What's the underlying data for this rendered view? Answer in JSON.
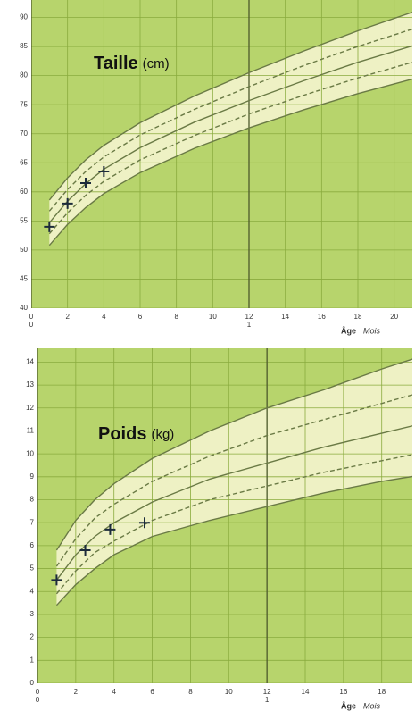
{
  "chart_data": [
    {
      "type": "growth",
      "title": "Taille",
      "unit": "(cm)",
      "x_label": "Âge",
      "x_unit": "Mois",
      "xlim": [
        0,
        21
      ],
      "ylim": [
        40,
        93
      ],
      "xticks": [
        0,
        2,
        4,
        6,
        8,
        10,
        12,
        14,
        16,
        18,
        20
      ],
      "year_ticks": [
        0,
        {
          "value": 12,
          "label": "1"
        }
      ],
      "yticks": [
        40,
        45,
        50,
        55,
        60,
        65,
        70,
        75,
        80,
        85,
        90
      ],
      "grid": true,
      "background": "#b7d46c",
      "band_color": "#eef1c4",
      "series": [
        {
          "style": "solid",
          "color": "#6a7a45",
          "x": [
            1,
            2,
            3,
            4,
            6,
            9,
            12,
            15,
            18,
            21
          ],
          "values": [
            50.8,
            54.4,
            57.3,
            59.7,
            63.3,
            67.5,
            71,
            74.1,
            76.9,
            79.4
          ]
        },
        {
          "style": "dashed",
          "color": "#6a7a45",
          "x": [
            1,
            2,
            3,
            4,
            6,
            9,
            12,
            15,
            18,
            21
          ],
          "values": [
            52.8,
            56.4,
            59.4,
            61.8,
            65.5,
            69.7,
            73.4,
            76.6,
            79.6,
            82.3
          ]
        },
        {
          "style": "solid",
          "color": "#6a7a45",
          "x": [
            1,
            2,
            3,
            4,
            6,
            9,
            12,
            15,
            18,
            21
          ],
          "values": [
            54.7,
            58.4,
            61.4,
            63.9,
            67.6,
            72,
            75.7,
            79.1,
            82.3,
            85.1
          ]
        },
        {
          "style": "dashed",
          "color": "#6a7a45",
          "x": [
            1,
            2,
            3,
            4,
            6,
            9,
            12,
            15,
            18,
            21
          ],
          "values": [
            56.7,
            60.4,
            63.5,
            66,
            69.8,
            74.2,
            78.1,
            81.7,
            85,
            88
          ]
        },
        {
          "style": "solid",
          "color": "#6a7a45",
          "x": [
            1,
            2,
            3,
            4,
            6,
            9,
            12,
            15,
            18,
            21
          ],
          "values": [
            58.6,
            62.4,
            65.5,
            68,
            71.9,
            76.5,
            80.5,
            84.2,
            87.7,
            90.9
          ]
        },
        {
          "style": "plus",
          "color": "#1c2b3b",
          "x": [
            1,
            2,
            3,
            4
          ],
          "values": [
            54,
            58,
            61.5,
            63.5
          ]
        }
      ]
    },
    {
      "type": "growth",
      "title": "Poids",
      "unit": "(kg)",
      "x_label": "Âge",
      "x_unit": "Mois",
      "xlim": [
        0,
        19.6
      ],
      "ylim": [
        0,
        14.6
      ],
      "xticks": [
        0,
        2,
        4,
        6,
        8,
        10,
        12,
        14,
        16,
        18
      ],
      "year_ticks": [
        0,
        {
          "value": 12,
          "label": "1"
        }
      ],
      "yticks": [
        0,
        1,
        2,
        3,
        4,
        5,
        6,
        7,
        8,
        9,
        10,
        11,
        12,
        13,
        14
      ],
      "grid": true,
      "background": "#b7d46c",
      "band_color": "#eef1c4",
      "series": [
        {
          "style": "solid",
          "color": "#6a7a45",
          "x": [
            1,
            2,
            3,
            4,
            6,
            9,
            12,
            15,
            18,
            21
          ],
          "values": [
            3.4,
            4.3,
            5,
            5.6,
            6.4,
            7.1,
            7.7,
            8.3,
            8.8,
            9.2
          ]
        },
        {
          "style": "dashed",
          "color": "#6a7a45",
          "x": [
            1,
            2,
            3,
            4,
            6,
            9,
            12,
            15,
            18,
            21
          ],
          "values": [
            3.9,
            4.9,
            5.7,
            6.2,
            7.1,
            8,
            8.6,
            9.2,
            9.7,
            10.2
          ]
        },
        {
          "style": "solid",
          "color": "#6a7a45",
          "x": [
            1,
            2,
            3,
            4,
            6,
            9,
            12,
            15,
            18,
            21
          ],
          "values": [
            4.5,
            5.6,
            6.4,
            7,
            7.9,
            8.9,
            9.6,
            10.3,
            10.9,
            11.5
          ]
        },
        {
          "style": "dashed",
          "color": "#6a7a45",
          "x": [
            1,
            2,
            3,
            4,
            6,
            9,
            12,
            15,
            18,
            21
          ],
          "values": [
            5.1,
            6.3,
            7.2,
            7.8,
            8.8,
            9.9,
            10.8,
            11.5,
            12.2,
            12.9
          ]
        },
        {
          "style": "solid",
          "color": "#6a7a45",
          "x": [
            1,
            2,
            3,
            4,
            6,
            9,
            12,
            15,
            18,
            21
          ],
          "values": [
            5.8,
            7.1,
            8,
            8.7,
            9.8,
            11,
            12,
            12.8,
            13.7,
            14.5
          ]
        },
        {
          "style": "plus",
          "color": "#1c2b3b",
          "x": [
            1,
            2.5,
            3.8,
            5.6
          ],
          "values": [
            4.5,
            5.8,
            6.7,
            7
          ]
        }
      ]
    }
  ]
}
